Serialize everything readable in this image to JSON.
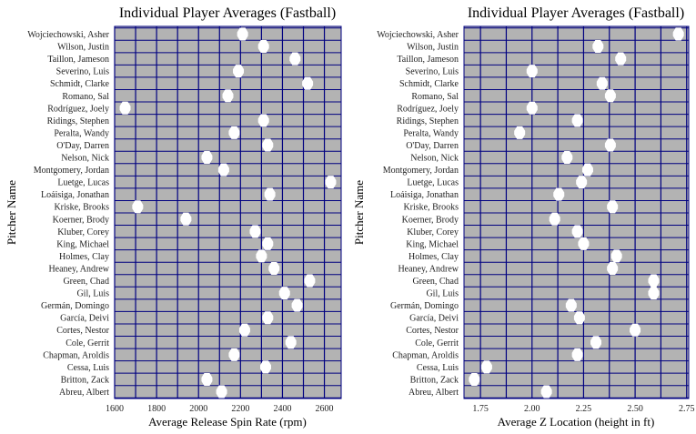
{
  "chart_data": [
    {
      "type": "scatter",
      "title": "Individual Player Averages (Fastball)",
      "xlabel": "Average Release Spin Rate (rpm)",
      "ylabel": "Pitcher Name",
      "xlim": [
        1600,
        2680
      ],
      "xticks": [
        1600,
        1800,
        2000,
        2200,
        2400,
        2600
      ],
      "categories": [
        "Abreu, Albert",
        "Britton, Zack",
        "Cessa, Luis",
        "Chapman, Aroldis",
        "Cole, Gerrit",
        "Cortes, Nestor",
        "García, Deivi",
        "Germán, Domingo",
        "Gil, Luis",
        "Green, Chad",
        "Heaney, Andrew",
        "Holmes, Clay",
        "King, Michael",
        "Kluber, Corey",
        "Koerner, Brody",
        "Kriske, Brooks",
        "Loáisiga, Jonathan",
        "Luetge, Lucas",
        "Montgomery, Jordan",
        "Nelson, Nick",
        "O'Day, Darren",
        "Peralta, Wandy",
        "Ridings, Stephen",
        "Rodríguez, Joely",
        "Romano, Sal",
        "Schmidt, Clarke",
        "Severino, Luis",
        "Taillon, Jameson",
        "Wilson, Justin",
        "Wojciechowski, Asher"
      ],
      "values": [
        2110,
        2040,
        2320,
        2170,
        2440,
        2220,
        2330,
        2470,
        2410,
        2530,
        2360,
        2300,
        2330,
        2270,
        1940,
        1710,
        2340,
        2630,
        2120,
        2040,
        2330,
        2170,
        2310,
        1650,
        2140,
        2520,
        2190,
        2460,
        2310,
        2210
      ],
      "grid": true,
      "marker_color": "#ffffff",
      "panel_color": "#b3b3b3",
      "grid_color": "#000080"
    },
    {
      "type": "scatter",
      "title": "Individual Player Averages (Fastball)",
      "xlabel": "Average Z Location (height in ft)",
      "ylabel": "Pitcher Name",
      "xlim": [
        1.67,
        2.76
      ],
      "xticks": [
        1.75,
        2.0,
        2.25,
        2.5,
        2.75
      ],
      "xtick_labels": [
        "1.75",
        "2.00",
        "2.25",
        "2.50",
        "2.75"
      ],
      "categories": [
        "Abreu, Albert",
        "Britton, Zack",
        "Cessa, Luis",
        "Chapman, Aroldis",
        "Cole, Gerrit",
        "Cortes, Nestor",
        "García, Deivi",
        "Germán, Domingo",
        "Gil, Luis",
        "Green, Chad",
        "Heaney, Andrew",
        "Holmes, Clay",
        "King, Michael",
        "Kluber, Corey",
        "Koerner, Brody",
        "Kriske, Brooks",
        "Loáisiga, Jonathan",
        "Luetge, Lucas",
        "Montgomery, Jordan",
        "Nelson, Nick",
        "O'Day, Darren",
        "Peralta, Wandy",
        "Ridings, Stephen",
        "Rodríguez, Joely",
        "Romano, Sal",
        "Schmidt, Clarke",
        "Severino, Luis",
        "Taillon, Jameson",
        "Wilson, Justin",
        "Wojciechowski, Asher"
      ],
      "values": [
        2.07,
        1.72,
        1.78,
        2.22,
        2.31,
        2.5,
        2.23,
        2.19,
        2.59,
        2.59,
        2.39,
        2.41,
        2.25,
        2.22,
        2.11,
        2.39,
        2.13,
        2.24,
        2.27,
        2.17,
        2.38,
        1.94,
        2.22,
        2.0,
        2.38,
        2.34,
        2.0,
        2.43,
        2.32,
        2.71
      ],
      "grid": true,
      "marker_color": "#ffffff",
      "panel_color": "#b3b3b3",
      "grid_color": "#000080"
    }
  ]
}
